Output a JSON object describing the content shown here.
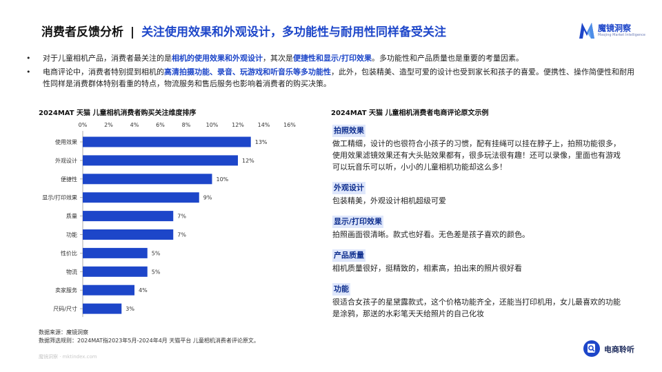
{
  "header": {
    "title_main": "消费者反馈分析",
    "separator": "|",
    "title_highlight": "关注使用效果和外观设计，多功能性与耐用性同样备受关注",
    "logo_name": "魔镜洞察",
    "logo_sub": "Moojing Market Intelligence"
  },
  "bullets": [
    {
      "dot": "•",
      "segments": [
        {
          "text": "对于儿童相机产品，消费者最关注的是",
          "bold": false
        },
        {
          "text": "相机的使用效果和外观设计",
          "bold": true
        },
        {
          "text": "，其次是",
          "bold": false
        },
        {
          "text": "便捷性和显示/打印效果",
          "bold": true
        },
        {
          "text": "。多功能性和产品质量也是重要的考量因素。",
          "bold": false
        }
      ]
    },
    {
      "dot": "•",
      "segments": [
        {
          "text": "电商评论中，消费者特别提到相机的",
          "bold": false
        },
        {
          "text": "高清拍摄功能、录音、玩游戏和听音乐等多功能性",
          "bold": true
        },
        {
          "text": "，此外，包装精美、造型可爱的设计也受到家长和孩子的喜爱。便携性、操作简便性和耐用性同样是消费群体特别看重的特点，物流服务和售后服务也影响着消费者的购买决策。",
          "bold": false
        }
      ]
    }
  ],
  "chart_section": {
    "title": "2024MAT 天猫 儿童相机消费者购买关注维度排序"
  },
  "chart_data": {
    "type": "bar",
    "orientation": "horizontal",
    "title": "2024MAT 天猫 儿童相机消费者购买关注维度排序",
    "categories": [
      "使用效果",
      "外观设计",
      "便捷性",
      "显示/打印效果",
      "质量",
      "功能",
      "性价比",
      "物流",
      "卖家服务",
      "尺码/尺寸"
    ],
    "values": [
      13,
      12,
      10,
      9,
      7,
      7,
      5,
      5,
      4,
      3
    ],
    "value_labels": [
      "13%",
      "12%",
      "10%",
      "9%",
      "7%",
      "7%",
      "5%",
      "5%",
      "4%",
      "3%"
    ],
    "x_ticks": [
      "0%",
      "2%",
      "4%",
      "6%",
      "8%",
      "10%",
      "12%",
      "14%",
      "16%"
    ],
    "xlim": [
      0,
      16
    ],
    "axis_position": "top",
    "grid": false,
    "bar_color": "#1d46c9"
  },
  "source": {
    "line1": "数据来源：魔镜洞察",
    "line2": "数据筛选规则：2024MAT指2023年5月-2024年4月 天猫平台 儿童相机消费者评论原文。"
  },
  "watermark": "魔镜洞察 · mktindex.com",
  "reviews_section": {
    "title": "2024MAT 天猫 儿童相机消费者电商评论原文示例",
    "items": [
      {
        "tag": "拍照效果",
        "text": "做工精细，设计的也很符合小孩子的习惯，配有挂绳可以挂在脖子上，拍照功能很多，使用效果滤镜效果还有大头贴效果都有，很多玩法很有趣！还可以录像，里面也有游戏可以玩音乐可以听，小小的儿童相机功能却这么多！"
      },
      {
        "tag": "外观设计",
        "text": "包装精美，外观设计相机超级可爱"
      },
      {
        "tag": "显示/打印效果",
        "text": "拍照画面很清晰。款式也好看。无色差是孩子喜欢的颜色。"
      },
      {
        "tag": "产品质量",
        "text": "相机质量很好，挺精致的，相素高，拍出来的照片很好看"
      },
      {
        "tag": "功能",
        "text": "很适合女孩子的星黛露款式，这个价格功能齐全，还能当打印机用，女儿最喜欢的功能是涂鸦，那送的水彩笔天天给照片的自己化妆"
      }
    ]
  },
  "badge": {
    "name": "电商聆听",
    "icon": "magnifier-icon"
  },
  "colors": {
    "accent": "#1d46c9",
    "tag_bg": "#dfe7fb"
  }
}
